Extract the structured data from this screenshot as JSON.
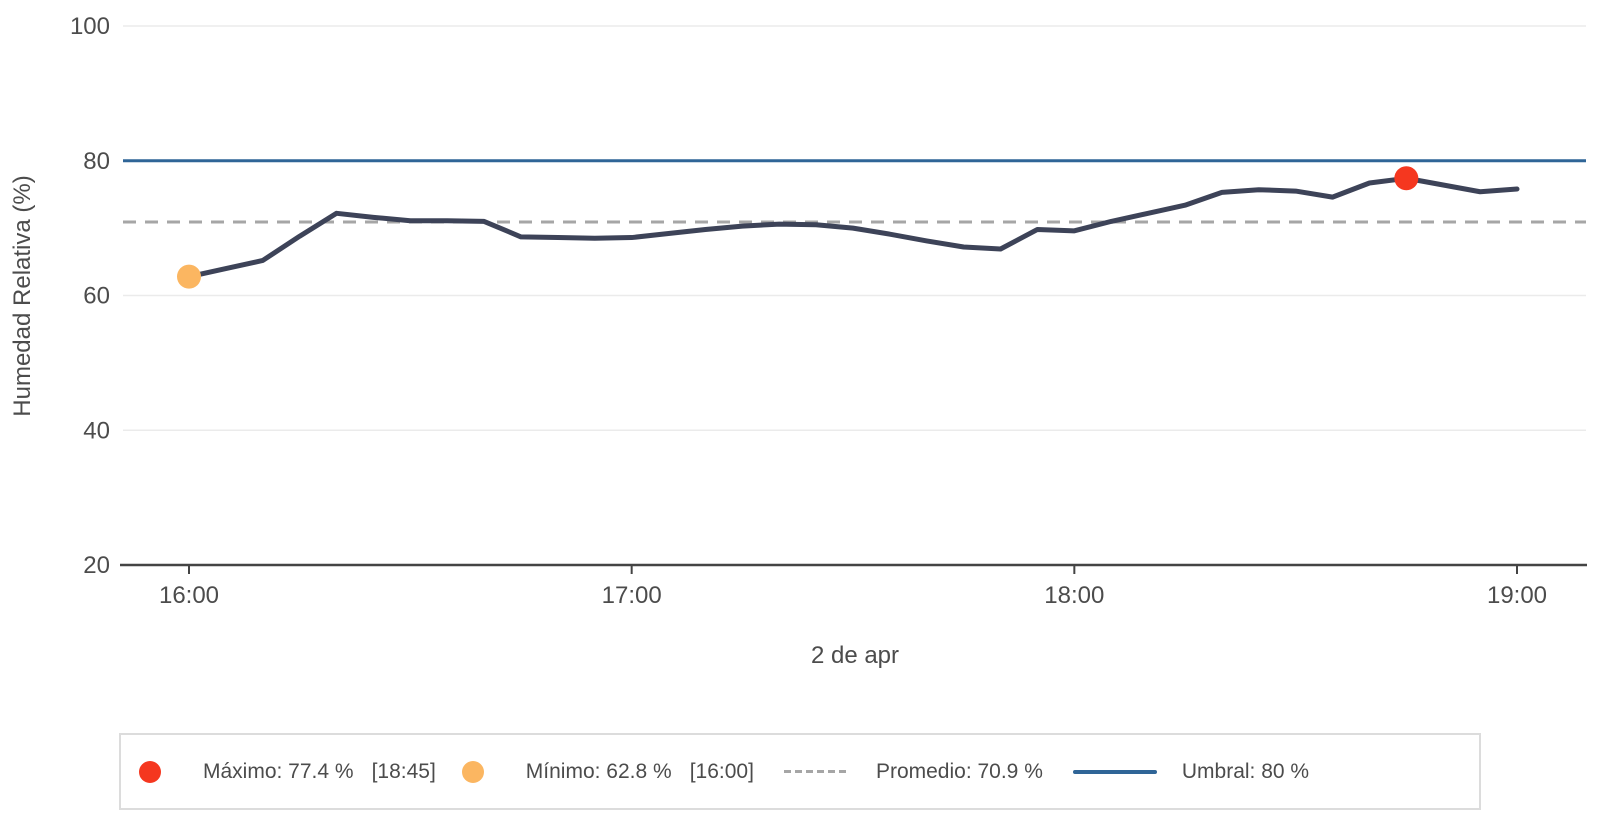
{
  "colors": {
    "series_line": "#3d4358",
    "threshold_line": "#2f6597",
    "average_line": "#a6a6a6",
    "max_marker": "#f5371f",
    "min_marker": "#fbb661",
    "axis_text": "#4c4c4c",
    "grid_line": "#ebebeb",
    "axis_line": "#444444",
    "legend_border": "#dcdcdc"
  },
  "chart_data": {
    "type": "line",
    "title": "",
    "xlabel": "2 de apr",
    "ylabel": "Humedad Relativa (%)",
    "ylim": [
      20,
      100
    ],
    "y_ticks": [
      20,
      40,
      60,
      80,
      100
    ],
    "x_ticks": [
      "16:00",
      "17:00",
      "18:00",
      "19:00"
    ],
    "grid": "horizontal",
    "legend_position": "bottom",
    "x": [
      "16:00",
      "16:05",
      "16:10",
      "16:15",
      "16:20",
      "16:25",
      "16:30",
      "16:35",
      "16:40",
      "16:45",
      "16:50",
      "16:55",
      "17:00",
      "17:05",
      "17:10",
      "17:15",
      "17:20",
      "17:25",
      "17:30",
      "17:35",
      "17:40",
      "17:45",
      "17:50",
      "17:55",
      "18:00",
      "18:05",
      "18:10",
      "18:15",
      "18:20",
      "18:25",
      "18:30",
      "18:35",
      "18:40",
      "18:45",
      "18:50",
      "18:55",
      "19:00"
    ],
    "series": [
      {
        "name": "Humedad Relativa",
        "values": [
          62.8,
          64.0,
          65.2,
          68.8,
          72.2,
          71.6,
          71.1,
          71.1,
          71.0,
          68.7,
          68.6,
          68.5,
          68.6,
          69.2,
          69.8,
          70.3,
          70.6,
          70.5,
          70.0,
          69.1,
          68.1,
          67.2,
          66.9,
          69.8,
          69.6,
          71.0,
          72.2,
          73.4,
          75.3,
          75.7,
          75.5,
          74.6,
          76.7,
          77.4,
          76.4,
          75.4,
          75.8
        ]
      }
    ],
    "annotations": {
      "maximum": {
        "label": "Máximo",
        "value": 77.4,
        "unit": "%",
        "time": "18:45"
      },
      "minimum": {
        "label": "Mínimo",
        "value": 62.8,
        "unit": "%",
        "time": "16:00"
      },
      "average": {
        "label": "Promedio",
        "value": 70.9,
        "unit": "%"
      },
      "threshold": {
        "label": "Umbral",
        "value": 80,
        "unit": "%"
      }
    }
  },
  "legend": {
    "items": [
      {
        "id": "max",
        "label": "Máximo: 77.4 %",
        "time": "[18:45]"
      },
      {
        "id": "min",
        "label": "Mínimo: 62.8 %",
        "time": "[16:00]"
      },
      {
        "id": "avg",
        "label": "Promedio: 70.9 %",
        "time": ""
      },
      {
        "id": "threshold",
        "label": "Umbral: 80 %",
        "time": ""
      }
    ]
  }
}
